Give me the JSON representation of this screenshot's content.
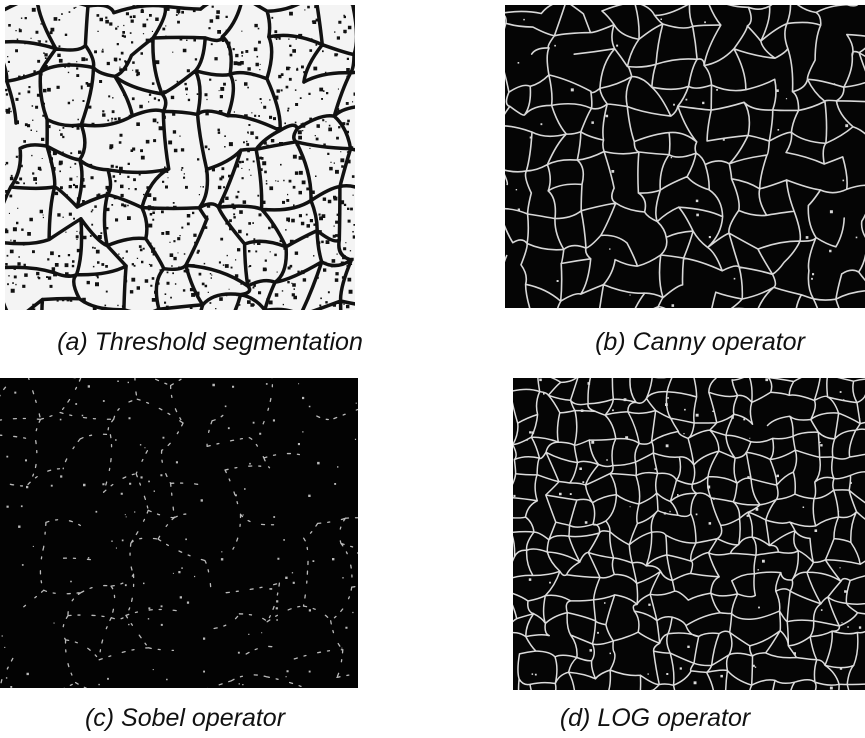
{
  "figure": {
    "panels": [
      {
        "caption": "(a) Threshold segmentation"
      },
      {
        "caption": "(b) Canny operator"
      },
      {
        "caption": "(c) Sobel operator"
      },
      {
        "caption": "(d) LOG operator"
      }
    ]
  }
}
